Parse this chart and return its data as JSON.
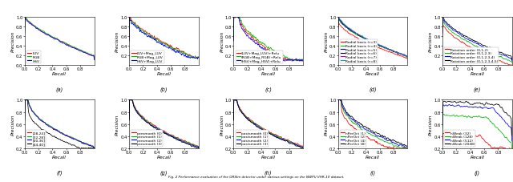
{
  "figure_width": 6.4,
  "figure_height": 2.28,
  "dpi": 100,
  "subplots": [
    {
      "label": "(a)",
      "ylim": [
        0,
        1
      ],
      "yticks": [
        0,
        0.2,
        0.4,
        0.6,
        0.8,
        1.0
      ],
      "curves": [
        {
          "name": "LUV",
          "color": "#FF0000"
        },
        {
          "name": "RGB",
          "color": "#00BB00"
        },
        {
          "name": "HSV",
          "color": "#0000FF"
        }
      ]
    },
    {
      "label": "(b)",
      "ylim": [
        0,
        1
      ],
      "yticks": [
        0.2,
        0.4,
        0.6,
        0.8,
        1.0
      ],
      "curves": [
        {
          "name": "LUV+Mag_LUV",
          "color": "#FF0000"
        },
        {
          "name": "RGB+Mag_LUV",
          "color": "#00BB00"
        },
        {
          "name": "HSV+Mag_LUV",
          "color": "#0000FF"
        }
      ]
    },
    {
      "label": "(c)",
      "ylim": [
        0,
        1
      ],
      "yticks": [
        0.2,
        0.4,
        0.6,
        0.8,
        1.0
      ],
      "curves": [
        {
          "name": "(LUV+Mag_LUV)+Relu",
          "color": "#FF0000"
        },
        {
          "name": "(RGB+Mag_RGB)+Relu",
          "color": "#00BB00"
        },
        {
          "name": "(HSV+Mag_HSV)+Relu",
          "color": "#0000FF"
        }
      ]
    },
    {
      "label": "(d)",
      "ylim": [
        0,
        1
      ],
      "yticks": [
        0,
        0.2,
        0.4,
        0.6,
        0.8,
        1.0
      ],
      "curves": [
        {
          "name": "Radial basis (r=3)",
          "color": "#FF0000"
        },
        {
          "name": "Radial basis (r=4)",
          "color": "#00BB00"
        },
        {
          "name": "Radial basis (r=5)",
          "color": "#0000FF"
        },
        {
          "name": "Radial basis (r=6)",
          "color": "#000000"
        },
        {
          "name": "Radial basis (r=7)",
          "color": "#BB00BB"
        },
        {
          "name": "Radial basis (r=8)",
          "color": "#00AAAA"
        }
      ]
    },
    {
      "label": "(e)",
      "ylim": [
        0,
        1
      ],
      "yticks": [
        0.2,
        0.4,
        0.6,
        0.8,
        1.0
      ],
      "curves": [
        {
          "name": "Rotation order (0,1,2)",
          "color": "#FF0000"
        },
        {
          "name": "Rotation order (0,1,2,3)",
          "color": "#00BB00"
        },
        {
          "name": "Rotation order (0,1,2,3,4)",
          "color": "#0000FF"
        },
        {
          "name": "Rotation order (0,1,2,3,4,5)",
          "color": "#000000"
        }
      ]
    },
    {
      "label": "(f)",
      "ylim": [
        0.2,
        1
      ],
      "yticks": [
        0.2,
        0.4,
        0.6,
        0.8,
        1.0
      ],
      "curves": [
        {
          "name": "[28,24]",
          "color": "#FF0000"
        },
        {
          "name": "[32,28]",
          "color": "#00BB00"
        },
        {
          "name": "[40,36]",
          "color": "#0000FF"
        },
        {
          "name": "[44,40]",
          "color": "#000000"
        }
      ]
    },
    {
      "label": "(g)",
      "ylim": [
        0.2,
        1
      ],
      "yticks": [
        0.2,
        0.4,
        0.6,
        0.8,
        1.0
      ],
      "curves": [
        {
          "name": "presmooth (0)",
          "color": "#FF0000"
        },
        {
          "name": "presmooth (1)",
          "color": "#00BB00"
        },
        {
          "name": "presmooth (2)",
          "color": "#0000FF"
        },
        {
          "name": "presmooth (3)",
          "color": "#000000"
        }
      ]
    },
    {
      "label": "(h)",
      "ylim": [
        0.2,
        1
      ],
      "yticks": [
        0.2,
        0.4,
        0.6,
        0.8,
        1.0
      ],
      "curves": [
        {
          "name": "postsmooth (0)",
          "color": "#FF0000"
        },
        {
          "name": "postsmooth (1)",
          "color": "#00BB00"
        },
        {
          "name": "postsmooth (2)",
          "color": "#0000FF"
        },
        {
          "name": "postsmooth (3)",
          "color": "#000000"
        }
      ]
    },
    {
      "label": "(i)",
      "ylim": [
        0.2,
        1
      ],
      "yticks": [
        0.2,
        0.4,
        0.6,
        0.8,
        1.0
      ],
      "curves": [
        {
          "name": "nPerOct (1)",
          "color": "#FF0000"
        },
        {
          "name": "nPerOct (2)",
          "color": "#00BB00"
        },
        {
          "name": "nPerOct (4)",
          "color": "#0000FF"
        },
        {
          "name": "nPerOct (8)",
          "color": "#000000"
        }
      ]
    },
    {
      "label": "(j)",
      "ylim": [
        0.2,
        1
      ],
      "yticks": [
        0.2,
        0.4,
        0.6,
        0.8,
        1.0
      ],
      "curves": [
        {
          "name": "nWeak (32)",
          "color": "#FF0000"
        },
        {
          "name": "nWeak (128)",
          "color": "#00BB00"
        },
        {
          "name": "nWeak (512)",
          "color": "#0000FF"
        },
        {
          "name": "nWeak (2048)",
          "color": "#000000"
        }
      ]
    }
  ],
  "xlabel": "Recall",
  "ylabel": "Precision",
  "xticks": [
    0,
    0.2,
    0.4,
    0.6,
    0.8
  ],
  "legend_fontsize": 3.2,
  "axis_fontsize": 4.2,
  "label_fontsize": 4.8,
  "tick_fontsize": 3.8,
  "linewidth": 0.55,
  "background_color": "#ffffff"
}
